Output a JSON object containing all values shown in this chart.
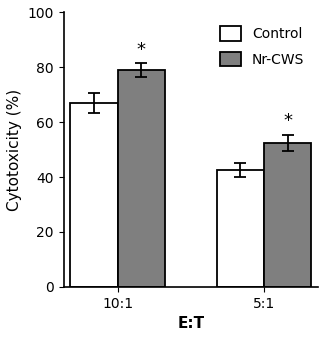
{
  "groups": [
    "10:1",
    "5:1"
  ],
  "control_values": [
    67.0,
    42.5
  ],
  "nrcws_values": [
    79.0,
    52.5
  ],
  "control_errors": [
    3.5,
    2.5
  ],
  "nrcws_errors": [
    2.5,
    3.0
  ],
  "control_color": "#ffffff",
  "nrcws_color": "#7f7f7f",
  "bar_edge_color": "#000000",
  "bar_width": 0.42,
  "ylabel": "Cytotoxicity (%)",
  "xlabel": "E:T",
  "ylim": [
    0,
    100
  ],
  "yticks": [
    0,
    20,
    40,
    60,
    80,
    100
  ],
  "legend_labels": [
    "Control",
    "Nr-CWS"
  ],
  "significance_label": "*",
  "label_fontsize": 11,
  "tick_fontsize": 10,
  "legend_fontsize": 10,
  "bar_linewidth": 1.3,
  "group_positions": [
    1.0,
    2.3
  ]
}
